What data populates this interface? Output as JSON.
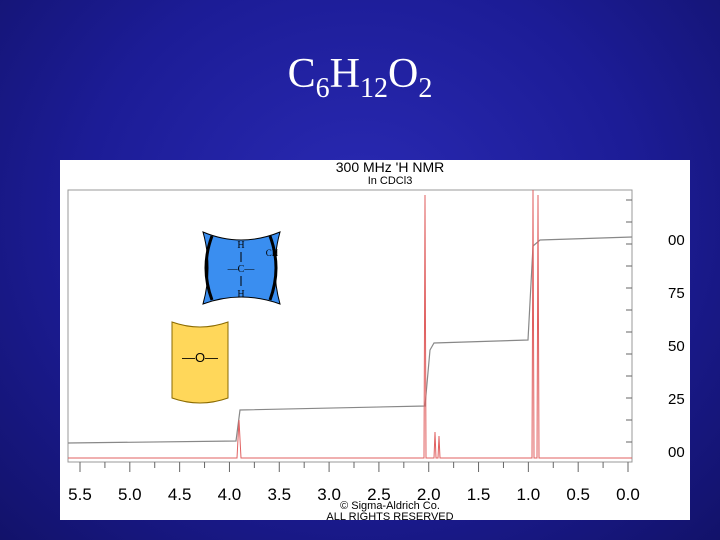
{
  "title": {
    "parts": [
      "C",
      "6",
      "H",
      "12",
      "O",
      "2"
    ]
  },
  "spectrum": {
    "header": "300 MHz 'H NMR",
    "solvent": "In CDCl3",
    "x_labels": [
      "5.5",
      "5.0",
      "4.5",
      "4.0",
      "3.5",
      "3.0",
      "2.5",
      "2.0",
      "1.5",
      "1.0",
      "0.5",
      "0.0"
    ],
    "integral_labels": [
      "00",
      "75",
      "50",
      "25",
      "00"
    ],
    "footer": [
      "© Sigma-Aldrich Co.",
      "ALL RIGHTS RESERVED"
    ]
  },
  "fragments": {
    "methylene": {
      "top": "H",
      "center": "—C—",
      "bottom": "H",
      "right": "CH"
    },
    "oxygen": "—O—"
  }
}
